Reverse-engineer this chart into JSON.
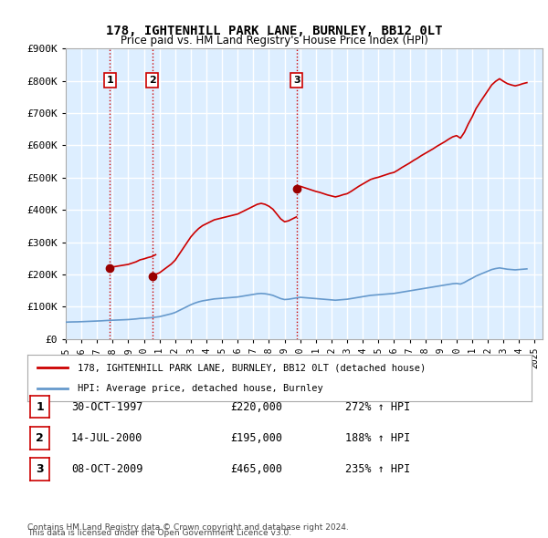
{
  "title": "178, IGHTENHILL PARK LANE, BURNLEY, BB12 0LT",
  "subtitle": "Price paid vs. HM Land Registry's House Price Index (HPI)",
  "ylim": [
    0,
    900000
  ],
  "yticks": [
    0,
    100000,
    200000,
    300000,
    400000,
    500000,
    600000,
    700000,
    800000,
    900000
  ],
  "ytick_labels": [
    "£0",
    "£100K",
    "£200K",
    "£300K",
    "£400K",
    "£500K",
    "£600K",
    "£700K",
    "£800K",
    "£900K"
  ],
  "xlim_start": 1995.0,
  "xlim_end": 2025.5,
  "sales": [
    {
      "year": 1997.83,
      "price": 220000,
      "label": "1",
      "date": "30-OCT-1997",
      "pct": "272%",
      "arrow": "↑"
    },
    {
      "year": 2000.54,
      "price": 195000,
      "label": "2",
      "date": "14-JUL-2000",
      "pct": "188%",
      "arrow": "↑"
    },
    {
      "year": 2009.77,
      "price": 465000,
      "label": "3",
      "date": "08-OCT-2009",
      "pct": "235%",
      "arrow": "↑"
    }
  ],
  "red_line_color": "#cc0000",
  "blue_line_color": "#6699cc",
  "sale_marker_color": "#990000",
  "dashed_line_color": "#cc0000",
  "legend_property": "178, IGHTENHILL PARK LANE, BURNLEY, BB12 0LT (detached house)",
  "legend_hpi": "HPI: Average price, detached house, Burnley",
  "footer1": "Contains HM Land Registry data © Crown copyright and database right 2024.",
  "footer2": "This data is licensed under the Open Government Licence v3.0.",
  "background_color": "#ffffff",
  "plot_bg_color": "#ddeeff",
  "grid_color": "#ffffff",
  "hpi_base_burnley": [
    [
      1995.0,
      52000
    ],
    [
      1995.25,
      52500
    ],
    [
      1995.5,
      52800
    ],
    [
      1995.75,
      53000
    ],
    [
      1996.0,
      53500
    ],
    [
      1996.25,
      54000
    ],
    [
      1996.5,
      54500
    ],
    [
      1996.75,
      55000
    ],
    [
      1997.0,
      55500
    ],
    [
      1997.25,
      56000
    ],
    [
      1997.5,
      56800
    ],
    [
      1997.75,
      57500
    ],
    [
      1998.0,
      58000
    ],
    [
      1998.25,
      58500
    ],
    [
      1998.5,
      59000
    ],
    [
      1998.75,
      59500
    ],
    [
      1999.0,
      60000
    ],
    [
      1999.25,
      61000
    ],
    [
      1999.5,
      62000
    ],
    [
      1999.75,
      63500
    ],
    [
      2000.0,
      64000
    ],
    [
      2000.25,
      65000
    ],
    [
      2000.5,
      66000
    ],
    [
      2000.75,
      67500
    ],
    [
      2001.0,
      69000
    ],
    [
      2001.25,
      72000
    ],
    [
      2001.5,
      75000
    ],
    [
      2001.75,
      78000
    ],
    [
      2002.0,
      82000
    ],
    [
      2002.25,
      88000
    ],
    [
      2002.5,
      94000
    ],
    [
      2002.75,
      100000
    ],
    [
      2003.0,
      106000
    ],
    [
      2003.25,
      111000
    ],
    [
      2003.5,
      115000
    ],
    [
      2003.75,
      118000
    ],
    [
      2004.0,
      120000
    ],
    [
      2004.25,
      122000
    ],
    [
      2004.5,
      124000
    ],
    [
      2004.75,
      125000
    ],
    [
      2005.0,
      126000
    ],
    [
      2005.25,
      127000
    ],
    [
      2005.5,
      128000
    ],
    [
      2005.75,
      129000
    ],
    [
      2006.0,
      130000
    ],
    [
      2006.25,
      132000
    ],
    [
      2006.5,
      134000
    ],
    [
      2006.75,
      136000
    ],
    [
      2007.0,
      138000
    ],
    [
      2007.25,
      140000
    ],
    [
      2007.5,
      141000
    ],
    [
      2007.75,
      140000
    ],
    [
      2008.0,
      138000
    ],
    [
      2008.25,
      135000
    ],
    [
      2008.5,
      130000
    ],
    [
      2008.75,
      125000
    ],
    [
      2009.0,
      122000
    ],
    [
      2009.25,
      123000
    ],
    [
      2009.5,
      125000
    ],
    [
      2009.75,
      127000
    ],
    [
      2010.0,
      129000
    ],
    [
      2010.25,
      128000
    ],
    [
      2010.5,
      127000
    ],
    [
      2010.75,
      126000
    ],
    [
      2011.0,
      125000
    ],
    [
      2011.25,
      124000
    ],
    [
      2011.5,
      123000
    ],
    [
      2011.75,
      122000
    ],
    [
      2012.0,
      121000
    ],
    [
      2012.25,
      120000
    ],
    [
      2012.5,
      121000
    ],
    [
      2012.75,
      122000
    ],
    [
      2013.0,
      123000
    ],
    [
      2013.25,
      125000
    ],
    [
      2013.5,
      127000
    ],
    [
      2013.75,
      129000
    ],
    [
      2014.0,
      131000
    ],
    [
      2014.25,
      133000
    ],
    [
      2014.5,
      135000
    ],
    [
      2014.75,
      136000
    ],
    [
      2015.0,
      137000
    ],
    [
      2015.25,
      138000
    ],
    [
      2015.5,
      139000
    ],
    [
      2015.75,
      140000
    ],
    [
      2016.0,
      141000
    ],
    [
      2016.25,
      143000
    ],
    [
      2016.5,
      145000
    ],
    [
      2016.75,
      147000
    ],
    [
      2017.0,
      149000
    ],
    [
      2017.25,
      151000
    ],
    [
      2017.5,
      153000
    ],
    [
      2017.75,
      155000
    ],
    [
      2018.0,
      157000
    ],
    [
      2018.25,
      159000
    ],
    [
      2018.5,
      161000
    ],
    [
      2018.75,
      163000
    ],
    [
      2019.0,
      165000
    ],
    [
      2019.25,
      167000
    ],
    [
      2019.5,
      169000
    ],
    [
      2019.75,
      171000
    ],
    [
      2020.0,
      172000
    ],
    [
      2020.25,
      170000
    ],
    [
      2020.5,
      175000
    ],
    [
      2020.75,
      182000
    ],
    [
      2021.0,
      188000
    ],
    [
      2021.25,
      195000
    ],
    [
      2021.5,
      200000
    ],
    [
      2021.75,
      205000
    ],
    [
      2022.0,
      210000
    ],
    [
      2022.25,
      215000
    ],
    [
      2022.5,
      218000
    ],
    [
      2022.75,
      220000
    ],
    [
      2023.0,
      218000
    ],
    [
      2023.25,
      216000
    ],
    [
      2023.5,
      215000
    ],
    [
      2023.75,
      214000
    ],
    [
      2024.0,
      215000
    ],
    [
      2024.25,
      216000
    ],
    [
      2024.5,
      217000
    ]
  ],
  "sale1_hpi_indexed": [
    [
      1997.83,
      220000
    ],
    [
      1998.0,
      223000
    ],
    [
      1998.25,
      225000
    ],
    [
      1998.5,
      227000
    ],
    [
      1998.75,
      229000
    ],
    [
      1999.0,
      231000
    ],
    [
      1999.25,
      235000
    ],
    [
      1999.5,
      239000
    ],
    [
      1999.75,
      245000
    ],
    [
      2000.0,
      248000
    ],
    [
      2000.25,
      252000
    ],
    [
      2000.5,
      255000
    ],
    [
      2000.75,
      261000
    ]
  ],
  "sale2_hpi_indexed": [
    [
      2000.54,
      195000
    ],
    [
      2000.75,
      200000
    ],
    [
      2001.0,
      205000
    ],
    [
      2001.25,
      214000
    ],
    [
      2001.5,
      223000
    ],
    [
      2001.75,
      232000
    ],
    [
      2002.0,
      244000
    ],
    [
      2002.25,
      262000
    ],
    [
      2002.5,
      280000
    ],
    [
      2002.75,
      298000
    ],
    [
      2003.0,
      316000
    ],
    [
      2003.25,
      330000
    ],
    [
      2003.5,
      342000
    ],
    [
      2003.75,
      351000
    ],
    [
      2004.0,
      357000
    ],
    [
      2004.25,
      363000
    ],
    [
      2004.5,
      369000
    ],
    [
      2004.75,
      372000
    ],
    [
      2005.0,
      375000
    ],
    [
      2005.25,
      378000
    ],
    [
      2005.5,
      381000
    ],
    [
      2005.75,
      384000
    ],
    [
      2006.0,
      387000
    ],
    [
      2006.25,
      393000
    ],
    [
      2006.5,
      399000
    ],
    [
      2006.75,
      405000
    ],
    [
      2007.0,
      411000
    ],
    [
      2007.25,
      417000
    ],
    [
      2007.5,
      420000
    ],
    [
      2007.75,
      417000
    ],
    [
      2008.0,
      411000
    ],
    [
      2008.25,
      402000
    ],
    [
      2008.5,
      387000
    ],
    [
      2008.75,
      372000
    ],
    [
      2009.0,
      363000
    ],
    [
      2009.25,
      366000
    ],
    [
      2009.5,
      372000
    ],
    [
      2009.75,
      378000
    ]
  ],
  "sale3_hpi_indexed": [
    [
      2009.77,
      465000
    ],
    [
      2010.0,
      473000
    ],
    [
      2010.25,
      469000
    ],
    [
      2010.5,
      465000
    ],
    [
      2010.75,
      461000
    ],
    [
      2011.0,
      457000
    ],
    [
      2011.25,
      454000
    ],
    [
      2011.5,
      450000
    ],
    [
      2011.75,
      446000
    ],
    [
      2012.0,
      443000
    ],
    [
      2012.25,
      440000
    ],
    [
      2012.5,
      443000
    ],
    [
      2012.75,
      447000
    ],
    [
      2013.0,
      450000
    ],
    [
      2013.25,
      457000
    ],
    [
      2013.5,
      465000
    ],
    [
      2013.75,
      473000
    ],
    [
      2014.0,
      480000
    ],
    [
      2014.25,
      487000
    ],
    [
      2014.5,
      494000
    ],
    [
      2014.75,
      498000
    ],
    [
      2015.0,
      501000
    ],
    [
      2015.25,
      505000
    ],
    [
      2015.5,
      509000
    ],
    [
      2015.75,
      513000
    ],
    [
      2016.0,
      516000
    ],
    [
      2016.25,
      523000
    ],
    [
      2016.5,
      531000
    ],
    [
      2016.75,
      538000
    ],
    [
      2017.0,
      545000
    ],
    [
      2017.25,
      553000
    ],
    [
      2017.5,
      560000
    ],
    [
      2017.75,
      568000
    ],
    [
      2018.0,
      575000
    ],
    [
      2018.25,
      582000
    ],
    [
      2018.5,
      589000
    ],
    [
      2018.75,
      597000
    ],
    [
      2019.0,
      604000
    ],
    [
      2019.25,
      611000
    ],
    [
      2019.5,
      619000
    ],
    [
      2019.75,
      626000
    ],
    [
      2020.0,
      630000
    ],
    [
      2020.25,
      622000
    ],
    [
      2020.5,
      640000
    ],
    [
      2020.75,
      666000
    ],
    [
      2021.0,
      688000
    ],
    [
      2021.25,
      714000
    ],
    [
      2021.5,
      733000
    ],
    [
      2021.75,
      751000
    ],
    [
      2022.0,
      769000
    ],
    [
      2022.25,
      787000
    ],
    [
      2022.5,
      798000
    ],
    [
      2022.75,
      806000
    ],
    [
      2023.0,
      798000
    ],
    [
      2023.25,
      791000
    ],
    [
      2023.5,
      787000
    ],
    [
      2023.75,
      784000
    ],
    [
      2024.0,
      787000
    ],
    [
      2024.25,
      791000
    ],
    [
      2024.5,
      794000
    ]
  ]
}
